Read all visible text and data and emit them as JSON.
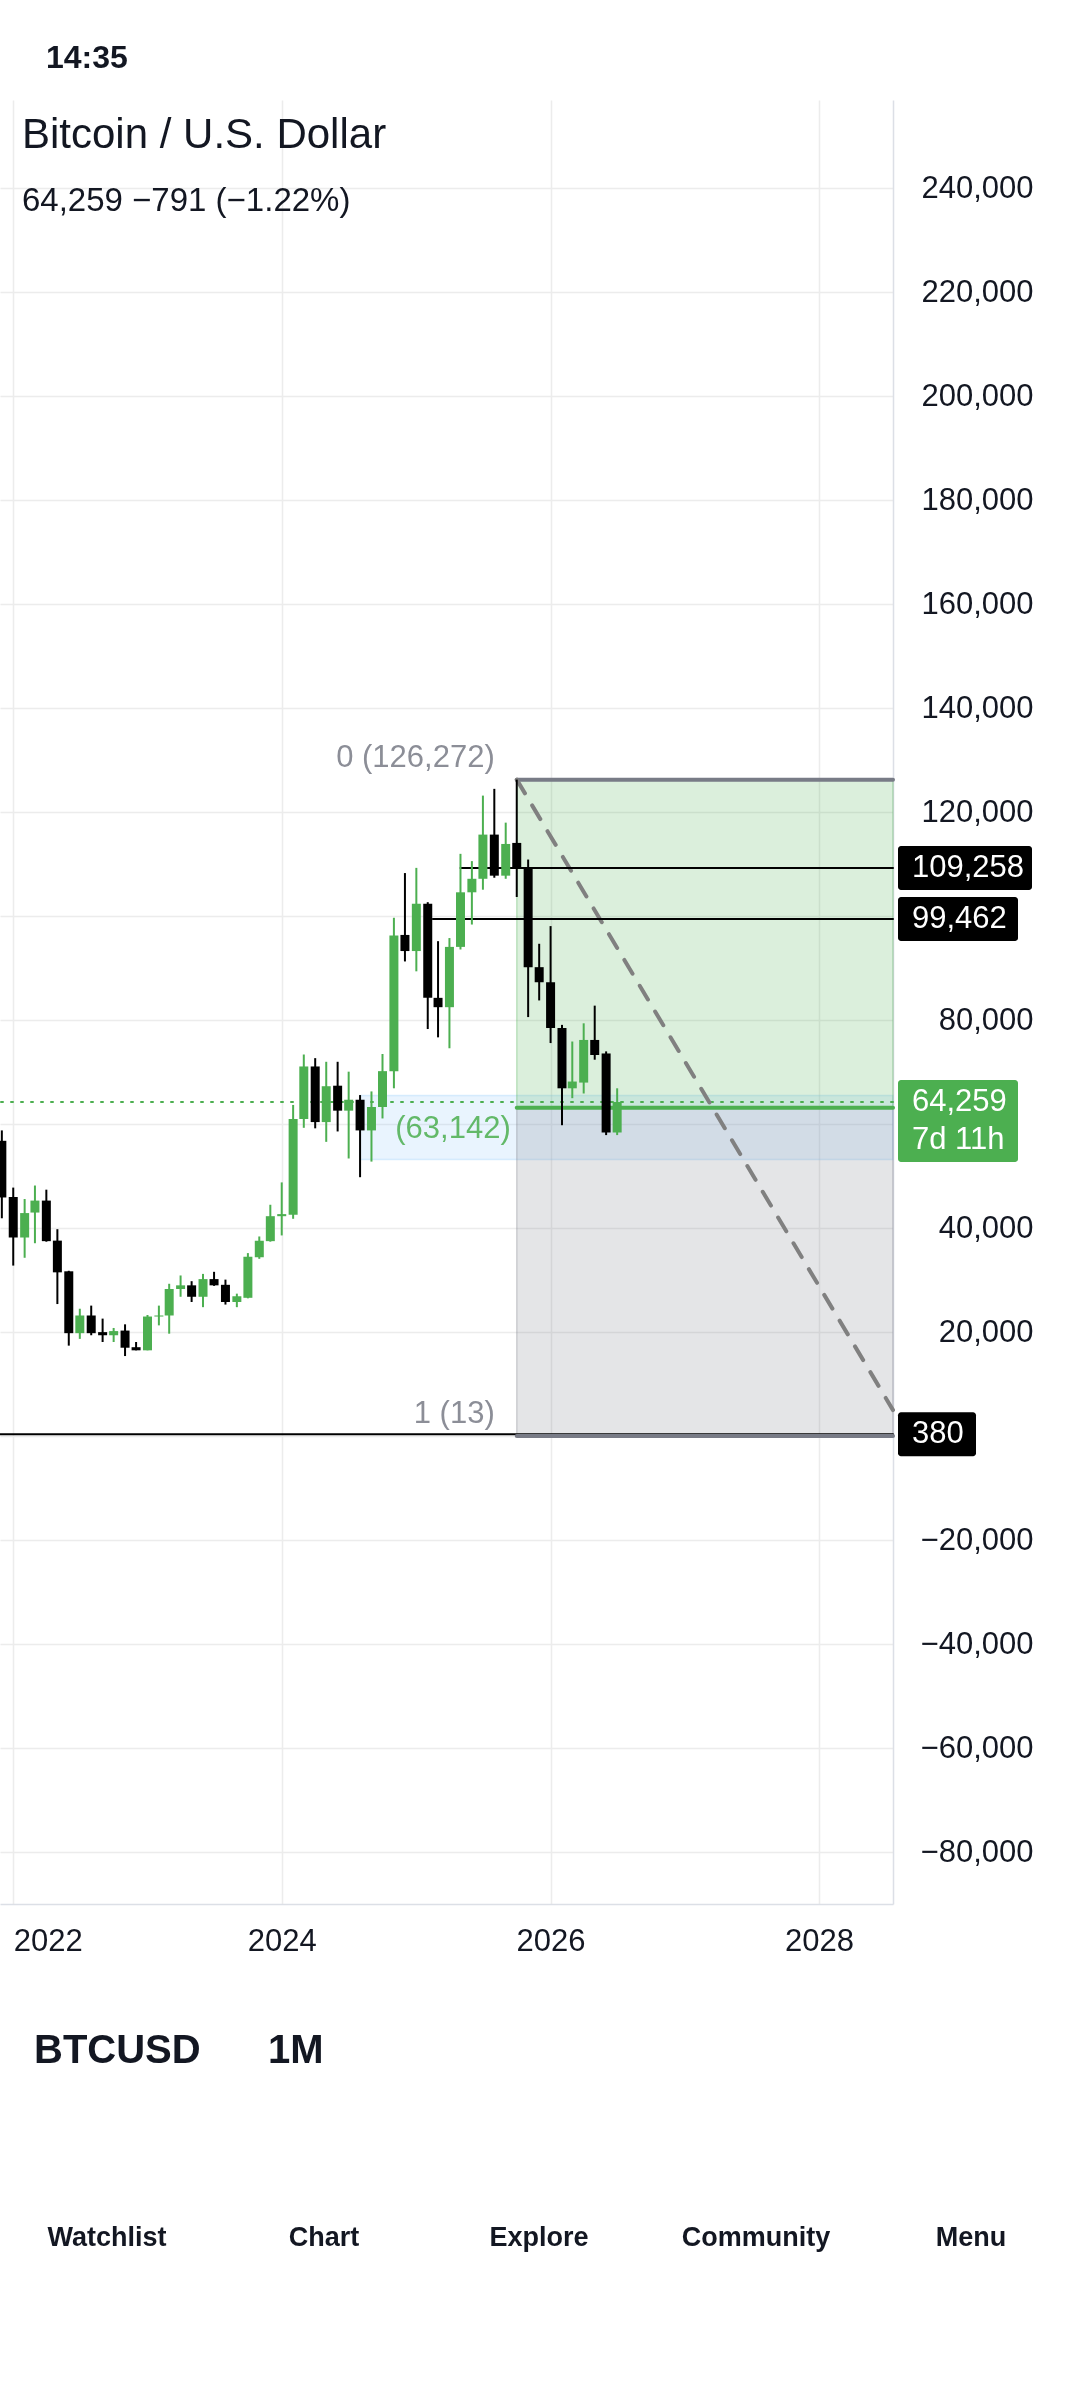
{
  "chart_data": {
    "type": "candlestick",
    "title": "Bitcoin / U.S. Dollar",
    "subtitle": "64,259 −791 (−1.22%)",
    "x": [
      "2021-12",
      "2022-01",
      "2022-02",
      "2022-03",
      "2022-04",
      "2022-05",
      "2022-06",
      "2022-07",
      "2022-08",
      "2022-09",
      "2022-10",
      "2022-11",
      "2022-12",
      "2023-01",
      "2023-02",
      "2023-03",
      "2023-04",
      "2023-05",
      "2023-06",
      "2023-07",
      "2023-08",
      "2023-09",
      "2023-10",
      "2023-11",
      "2023-12",
      "2024-01",
      "2024-02",
      "2024-03",
      "2024-04",
      "2024-05",
      "2024-06",
      "2024-07",
      "2024-08",
      "2024-09",
      "2024-10",
      "2024-11",
      "2024-12",
      "2025-01",
      "2025-02",
      "2025-03",
      "2025-04",
      "2025-05",
      "2025-06",
      "2025-07",
      "2025-08",
      "2025-09",
      "2025-10",
      "2025-11",
      "2025-12",
      "2026-01",
      "2026-02",
      "2026-03",
      "2026-04",
      "2026-05",
      "2026-06",
      "2026-07"
    ],
    "ohlc": [
      [
        56800,
        58800,
        41900,
        45900
      ],
      [
        46000,
        47800,
        32800,
        38200
      ],
      [
        38200,
        45600,
        34300,
        42900
      ],
      [
        43000,
        48200,
        37100,
        45300
      ],
      [
        45300,
        47400,
        37400,
        37500
      ],
      [
        37600,
        39800,
        25400,
        31500
      ],
      [
        31700,
        31800,
        17400,
        19800
      ],
      [
        19800,
        24500,
        18700,
        23200
      ],
      [
        23200,
        25100,
        19400,
        19800
      ],
      [
        20000,
        22600,
        18100,
        19400
      ],
      [
        19400,
        20800,
        18100,
        20200
      ],
      [
        20300,
        21500,
        15400,
        17000
      ],
      [
        17100,
        18100,
        16500,
        16500
      ],
      [
        16500,
        23300,
        16500,
        23000
      ],
      [
        23000,
        25100,
        21300,
        23200
      ],
      [
        23200,
        29300,
        19700,
        28300
      ],
      [
        28300,
        30900,
        26800,
        29000
      ],
      [
        29000,
        29800,
        25800,
        26800
      ],
      [
        26800,
        31200,
        24800,
        30200
      ],
      [
        30200,
        31600,
        28900,
        29000
      ],
      [
        29100,
        30100,
        25300,
        25800
      ],
      [
        25800,
        27400,
        24800,
        26900
      ],
      [
        26600,
        35200,
        26500,
        34500
      ],
      [
        34400,
        38400,
        34100,
        37600
      ],
      [
        37500,
        44500,
        37400,
        42300
      ],
      [
        42300,
        48800,
        38600,
        42700
      ],
      [
        42600,
        63700,
        41800,
        61000
      ],
      [
        61000,
        73400,
        59300,
        71100
      ],
      [
        71100,
        72700,
        59200,
        60400
      ],
      [
        60400,
        72000,
        56600,
        67300
      ],
      [
        67400,
        72000,
        58600,
        62600
      ],
      [
        62600,
        70100,
        53400,
        64700
      ],
      [
        64700,
        65600,
        49800,
        58800
      ],
      [
        58800,
        66300,
        52800,
        63300
      ],
      [
        63300,
        73500,
        61100,
        70200
      ],
      [
        70200,
        99700,
        66900,
        96300
      ],
      [
        96400,
        108300,
        91300,
        93300
      ],
      [
        93300,
        109300,
        89400,
        102400
      ],
      [
        102400,
        102700,
        78300,
        84300
      ],
      [
        84300,
        95200,
        76700,
        82500
      ],
      [
        82500,
        95800,
        74600,
        94100
      ],
      [
        94100,
        112000,
        93600,
        104600
      ],
      [
        104600,
        110600,
        98400,
        107200
      ],
      [
        107200,
        123200,
        105100,
        115700
      ],
      [
        115700,
        124500,
        107400,
        107800
      ],
      [
        107800,
        118000,
        107200,
        113900
      ],
      [
        114100,
        126272,
        103700,
        109300
      ],
      [
        109300,
        110900,
        80600,
        90200
      ],
      [
        90200,
        94700,
        83800,
        87300
      ],
      [
        87300,
        98100,
        75600,
        78500
      ],
      [
        78500,
        79100,
        59800,
        66900
      ],
      [
        66900,
        75900,
        65000,
        68200
      ],
      [
        68000,
        79400,
        65900,
        76200
      ],
      [
        76200,
        82800,
        72400,
        73300
      ],
      [
        73600,
        74000,
        57900,
        58400
      ],
      [
        58400,
        66900,
        57900,
        64259
      ]
    ],
    "colors": [
      "#000000",
      "#000000",
      "#4caf50",
      "#4caf50",
      "#000000",
      "#000000",
      "#000000",
      "#4caf50",
      "#000000",
      "#000000",
      "#4caf50",
      "#000000",
      "#000000",
      "#4caf50",
      "#4caf50",
      "#4caf50",
      "#4caf50",
      "#000000",
      "#4caf50",
      "#000000",
      "#000000",
      "#4caf50",
      "#4caf50",
      "#4caf50",
      "#4caf50",
      "#4caf50",
      "#4caf50",
      "#4caf50",
      "#000000",
      "#4caf50",
      "#000000",
      "#4caf50",
      "#000000",
      "#4caf50",
      "#4caf50",
      "#4caf50",
      "#000000",
      "#4caf50",
      "#000000",
      "#000000",
      "#4caf50",
      "#4caf50",
      "#4caf50",
      "#4caf50",
      "#000000",
      "#4caf50",
      "#000000",
      "#000000",
      "#000000",
      "#000000",
      "#000000",
      "#4caf50",
      "#4caf50",
      "#000000",
      "#000000",
      "#4caf50"
    ],
    "series": [
      {
        "type": "line",
        "x": [
          "2024-08",
          "2028-07-20"
        ],
        "values": [
          null,
          null
        ],
        "color": "#90caf9",
        "lower": [
          53200,
          53200
        ],
        "upper": [
          65500,
          65500
        ]
      },
      {
        "type": "line",
        "x": [
          "2025-10",
          "2028-07-20"
        ],
        "values": [
          126272,
          126272
        ],
        "color": "#787b86",
        "value_labels": [
          "0 (126,272)",
          null
        ]
      },
      {
        "type": "line",
        "x": [
          "2025-10",
          "2028-07-20"
        ],
        "values": [
          63142,
          63142
        ],
        "color": "#4caf50",
        "lower": [
          63142,
          63142
        ],
        "upper": [
          126272,
          126272
        ],
        "value_labels": [
          "(63,142)",
          null
        ]
      },
      {
        "type": "line",
        "x": [
          "2025-10",
          "2028-07-20"
        ],
        "values": [
          13,
          13
        ],
        "color": "#787b86",
        "lower": [
          13,
          13
        ],
        "upper": [
          63142,
          63142
        ],
        "value_labels": [
          "1 (13)",
          null
        ]
      },
      {
        "type": "line",
        "x": [
          "2025-10",
          "2028-07-20"
        ],
        "values": [
          126272,
          5000
        ],
        "color": "#808080",
        "line_style": "dashed"
      },
      {
        "type": "line",
        "x": [
          "2025-05",
          "2028-07-20"
        ],
        "values": [
          109258,
          109258
        ],
        "color": "#000000",
        "value_labels": [
          null,
          "109,258"
        ]
      },
      {
        "type": "line",
        "x": [
          "2025-02-15",
          "2028-07-20"
        ],
        "values": [
          99462,
          99462
        ],
        "color": "#000000",
        "value_labels": [
          null,
          "99,462"
        ]
      }
    ],
    "ref_lines": [
      {
        "axis": "y",
        "value": 64259,
        "label": "64,259\n7d 11h",
        "color": "#4caf50",
        "line_style": "dotted"
      },
      {
        "axis": "y",
        "value": 380,
        "label": "380",
        "color": "#000000"
      }
    ],
    "xlim": [
      "2021-11-26",
      "2028-07-20"
    ],
    "xticks": [
      "2022",
      "2024",
      "2026",
      "2028"
    ],
    "ylim": [
      -90000,
      257000
    ],
    "yticks": [
      {
        "value": -80000,
        "label": "−80,000"
      },
      {
        "value": -60000,
        "label": "−60,000"
      },
      {
        "value": -40000,
        "label": "−40,000"
      },
      {
        "value": -20000,
        "label": "−20,000"
      },
      {
        "value": 0,
        "label": null
      },
      {
        "value": 20000,
        "label": "20,000"
      },
      {
        "value": 40000,
        "label": "40,000"
      },
      {
        "value": 60000,
        "label": null
      },
      {
        "value": 80000,
        "label": "80,000"
      },
      {
        "value": 100000,
        "label": null
      },
      {
        "value": 120000,
        "label": "120,000"
      },
      {
        "value": 140000,
        "label": "140,000"
      },
      {
        "value": 160000,
        "label": "160,000"
      },
      {
        "value": 180000,
        "label": "180,000"
      },
      {
        "value": 200000,
        "label": "200,000"
      },
      {
        "value": 220000,
        "label": "220,000"
      },
      {
        "value": 240000,
        "label": "240,000"
      }
    ],
    "grid": true,
    "annotations": [
      "14:35",
      "BTCUSD",
      "1M",
      "Watchlist",
      "Chart",
      "Explore",
      "Community",
      "Menu"
    ]
  }
}
